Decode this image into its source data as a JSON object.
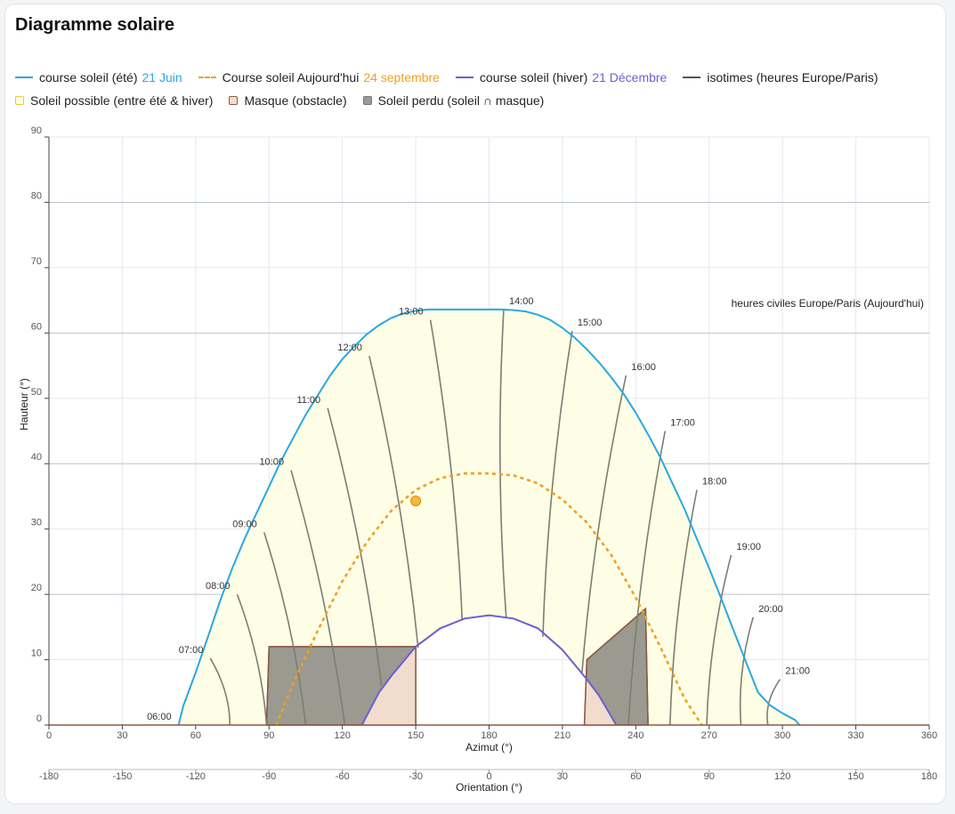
{
  "card": {
    "title": "Diagramme solaire"
  },
  "legend": {
    "summer": {
      "label": "course soleil (été)",
      "date": "21 Juin",
      "color": "#29a8e0"
    },
    "today": {
      "label": "Course soleil Aujourd'hui",
      "date": "24 septembre",
      "color": "#f0a020"
    },
    "winter": {
      "label": "course soleil (hiver)",
      "date": "21 Décembre",
      "color": "#6b5fd3"
    },
    "isotimes": {
      "label": "isotimes (heures Europe/Paris)",
      "color": "#555555"
    },
    "possible": {
      "label": "Soleil possible (entre été & hiver)",
      "fill": "#fefee6",
      "stroke": "#e8c840"
    },
    "mask": {
      "label": "Masque (obstacle)",
      "fill": "#f2dccd",
      "stroke": "#8a5a44"
    },
    "lost": {
      "label": "Soleil perdu (soleil ∩ masque)",
      "fill": "#9a9a90",
      "stroke": "#777777"
    }
  },
  "chart_data": {
    "type": "line",
    "xlabel": "Azimut (°)",
    "ylabel": "Hauteur (°)",
    "x2label": "Orientation (°)",
    "xlim": [
      0,
      360
    ],
    "ylim": [
      0,
      90
    ],
    "xticks": [
      0,
      30,
      60,
      90,
      120,
      150,
      180,
      210,
      240,
      270,
      300,
      330,
      360
    ],
    "x2ticks": [
      -180,
      -150,
      -120,
      -90,
      -60,
      -30,
      0,
      30,
      60,
      90,
      120,
      150,
      180
    ],
    "yticks": [
      0,
      10,
      20,
      30,
      40,
      50,
      60,
      70,
      80,
      90
    ],
    "annotation": "heures civiles Europe/Paris (Aujourd'hui)",
    "grid": true,
    "series": [
      {
        "name": "course soleil (été)",
        "x": [
          53,
          55,
          60,
          65,
          70,
          75,
          80,
          85,
          90,
          95,
          100,
          105,
          110,
          115,
          120,
          125,
          130,
          135,
          140,
          145,
          150,
          155,
          160,
          165,
          170,
          175,
          180,
          185,
          190,
          195,
          200,
          205,
          210,
          215,
          220,
          225,
          230,
          235,
          240,
          245,
          250,
          255,
          260,
          265,
          270,
          275,
          280,
          285,
          290,
          295,
          300,
          305,
          307
        ],
        "y": [
          0,
          3,
          8,
          13.5,
          19,
          24,
          28.5,
          32.5,
          36.5,
          40.5,
          44,
          47.5,
          50.5,
          53.5,
          56,
          58,
          59.8,
          61.2,
          62.3,
          63,
          63.4,
          63.6,
          63.6,
          63.6,
          63.6,
          63.6,
          63.6,
          63.6,
          63.5,
          63.3,
          62.8,
          62,
          60.8,
          59.3,
          57.5,
          55.5,
          53.2,
          50.7,
          47.8,
          44.5,
          41,
          37,
          33,
          28.5,
          24,
          19.3,
          14.5,
          9.7,
          5,
          3,
          1.8,
          0.8,
          0
        ]
      },
      {
        "name": "Course soleil Aujourd'hui",
        "x": [
          93,
          100,
          110,
          120,
          130,
          140,
          150,
          160,
          170,
          180,
          190,
          200,
          210,
          220,
          230,
          240,
          250,
          260,
          267
        ],
        "y": [
          0,
          6.5,
          14.5,
          22,
          28,
          32.8,
          36,
          37.8,
          38.5,
          38.5,
          38.2,
          37,
          34.5,
          31,
          26,
          19.5,
          12,
          4,
          0
        ]
      },
      {
        "name": "course soleil (hiver)",
        "x": [
          128,
          135,
          140,
          150,
          160,
          170,
          180,
          190,
          200,
          210,
          220,
          225,
          232
        ],
        "y": [
          0,
          5,
          7.5,
          12,
          14.8,
          16.3,
          16.8,
          16.3,
          14.8,
          11.5,
          7,
          4.5,
          0
        ]
      }
    ],
    "current_sun": {
      "x": 150,
      "y": 34.3
    },
    "isotimes": [
      {
        "label": "06:00",
        "summer": [
          53,
          0
        ],
        "winter": null
      },
      {
        "label": "07:00",
        "summer": [
          66,
          10.2
        ],
        "winter": [
          74,
          0
        ]
      },
      {
        "label": "08:00",
        "summer": [
          77,
          20
        ],
        "winter": [
          89,
          0
        ]
      },
      {
        "label": "09:00",
        "summer": [
          88,
          29.5
        ],
        "winter": [
          105,
          0
        ]
      },
      {
        "label": "10:00",
        "summer": [
          99,
          39
        ],
        "winter": [
          121,
          0
        ]
      },
      {
        "label": "11:00",
        "summer": [
          114,
          48.5
        ],
        "winter": [
          136,
          6
        ]
      },
      {
        "label": "12:00",
        "summer": [
          131,
          56.5
        ],
        "winter": [
          151,
          11.8
        ]
      },
      {
        "label": "13:00",
        "summer": [
          156,
          62
        ],
        "winter": [
          169,
          16
        ]
      },
      {
        "label": "14:00",
        "summer": [
          186,
          63.6
        ],
        "winter": [
          187,
          16.5
        ]
      },
      {
        "label": "15:00",
        "summer": [
          214,
          60.3
        ],
        "winter": [
          202,
          13.5
        ]
      },
      {
        "label": "16:00",
        "summer": [
          236,
          53.5
        ],
        "winter": [
          218,
          8
        ]
      },
      {
        "label": "17:00",
        "summer": [
          252,
          45
        ],
        "winter": [
          237,
          0
        ]
      },
      {
        "label": "18:00",
        "summer": [
          265,
          36
        ],
        "winter": [
          254,
          0
        ]
      },
      {
        "label": "19:00",
        "summer": [
          279,
          26
        ],
        "winter": [
          269,
          0
        ]
      },
      {
        "label": "20:00",
        "summer": [
          288,
          16.5
        ],
        "winter": [
          283,
          0
        ]
      },
      {
        "label": "21:00",
        "summer": [
          299,
          7
        ],
        "winter": [
          294,
          0
        ]
      }
    ],
    "masks": [
      {
        "name": "obstacle-1",
        "points": [
          [
            89,
            0
          ],
          [
            90,
            12
          ],
          [
            150,
            12
          ],
          [
            150,
            0
          ]
        ]
      },
      {
        "name": "obstacle-2",
        "points": [
          [
            219,
            0
          ],
          [
            220,
            10
          ],
          [
            244,
            17.8
          ],
          [
            245,
            0
          ]
        ]
      }
    ]
  }
}
